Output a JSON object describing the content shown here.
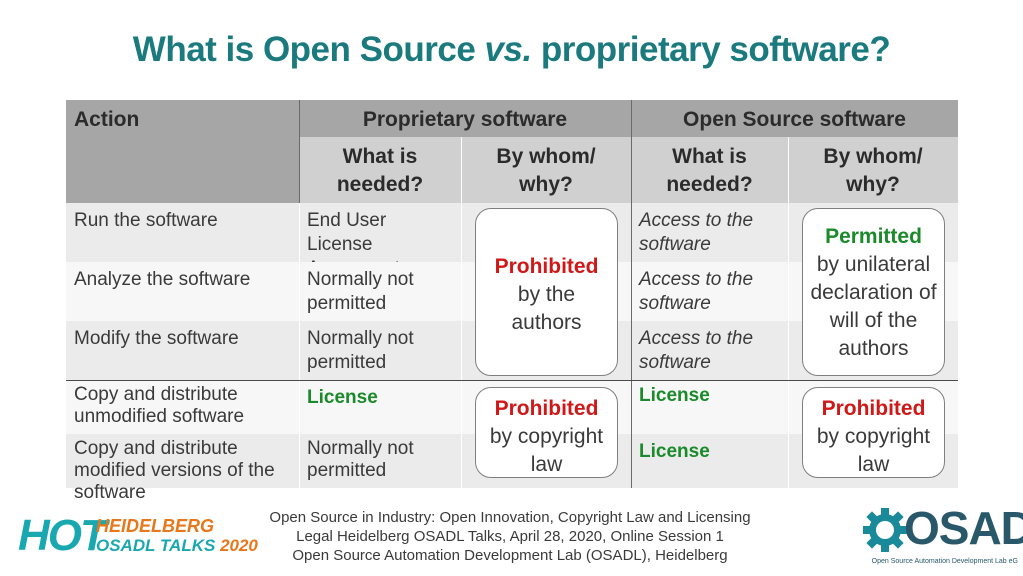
{
  "title": {
    "part1": "What is Open Source",
    "part2": "vs.",
    "part3": "proprietary software?"
  },
  "table": {
    "header": {
      "action": "Action",
      "proprietary": "Proprietary software",
      "open_source": "Open Source software",
      "what_needed": "What is needed?",
      "by_whom": "By whom/ why?"
    },
    "rows": [
      {
        "action": "Run the software",
        "prop_needed": "End User License Agreement (EULA)",
        "os_needed": "Access to the software"
      },
      {
        "action": "Analyze the software",
        "prop_needed": "Normally not permitted",
        "os_needed": "Access to the software"
      },
      {
        "action": "Modify the software",
        "prop_needed": "Normally not permitted",
        "os_needed": "Access to the software"
      },
      {
        "action": "Copy and distribute unmodified software",
        "prop_needed": "License",
        "os_needed": "License"
      },
      {
        "action": "Copy and distribute modified versions of the software",
        "prop_needed": "Normally not permitted",
        "os_needed": "License"
      }
    ],
    "bubbles": {
      "prop_top": {
        "highlight": "Prohibited",
        "text": "by the authors"
      },
      "os_top": {
        "highlight": "Permitted",
        "text": "by unilateral declaration of will of the authors"
      },
      "prop_bottom": {
        "highlight": "Prohibited",
        "text": "by copyright law"
      },
      "os_bottom": {
        "highlight": "Prohibited",
        "text": "by copyright law"
      }
    }
  },
  "footer": {
    "line1": "Open Source in Industry: Open Innovation, Copyright Law and Licensing",
    "line2": "Legal Heidelberg OSADL Talks, April 28, 2020, Online Session 1",
    "line3": "Open Source Automation Development Lab (OSADL), Heidelberg"
  },
  "logos": {
    "hot": "HOT",
    "hot_line1": "HEIDELBERG",
    "hot_line2": "OSADL TALKS",
    "hot_year": "2020",
    "osadl": "OSADL",
    "osadl_tagline": "Open Source Automation Development Lab eG"
  },
  "colors": {
    "title": "#1a7a7e",
    "permitted": "#1a8a2a",
    "prohibited": "#d01818",
    "header_dark": "#a6a6a6",
    "header_light": "#d0d0d0"
  }
}
